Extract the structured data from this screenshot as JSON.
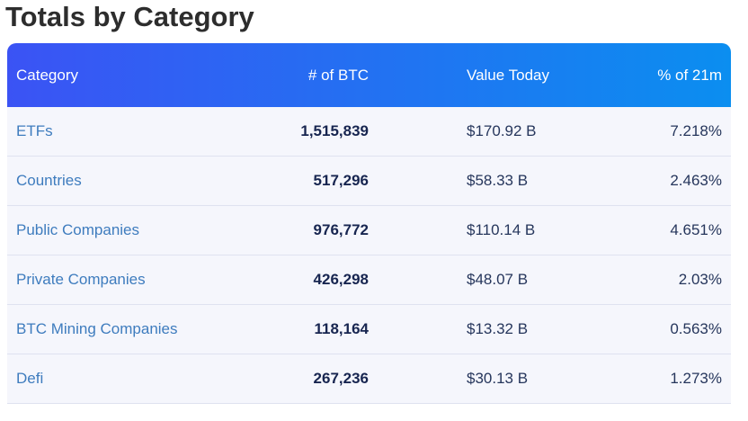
{
  "title": "Totals by Category",
  "table": {
    "columns": [
      "Category",
      "# of BTC",
      "Value Today",
      "% of 21m"
    ],
    "rows": [
      {
        "category": "ETFs",
        "btc": "1,515,839",
        "value": "$170.92 B",
        "pct": "7.218%"
      },
      {
        "category": "Countries",
        "btc": "517,296",
        "value": "$58.33 B",
        "pct": "2.463%"
      },
      {
        "category": "Public Companies",
        "btc": "976,772",
        "value": "$110.14 B",
        "pct": "4.651%"
      },
      {
        "category": "Private Companies",
        "btc": "426,298",
        "value": "$48.07 B",
        "pct": "2.03%"
      },
      {
        "category": "BTC Mining Companies",
        "btc": "118,164",
        "value": "$13.32 B",
        "pct": "0.563%"
      },
      {
        "category": "Defi",
        "btc": "267,236",
        "value": "$30.13 B",
        "pct": "1.273%"
      }
    ]
  },
  "colors": {
    "header_gradient_start": "#3b53f4",
    "header_gradient_end": "#0b8ef0",
    "header_text": "#ffffff",
    "row_background": "#f5f6fc",
    "row_divider": "#dfe2f0",
    "category_link": "#3e7cbe",
    "btc_number": "#172550",
    "value_text": "#26365c",
    "title_text": "#2d2d2d"
  }
}
